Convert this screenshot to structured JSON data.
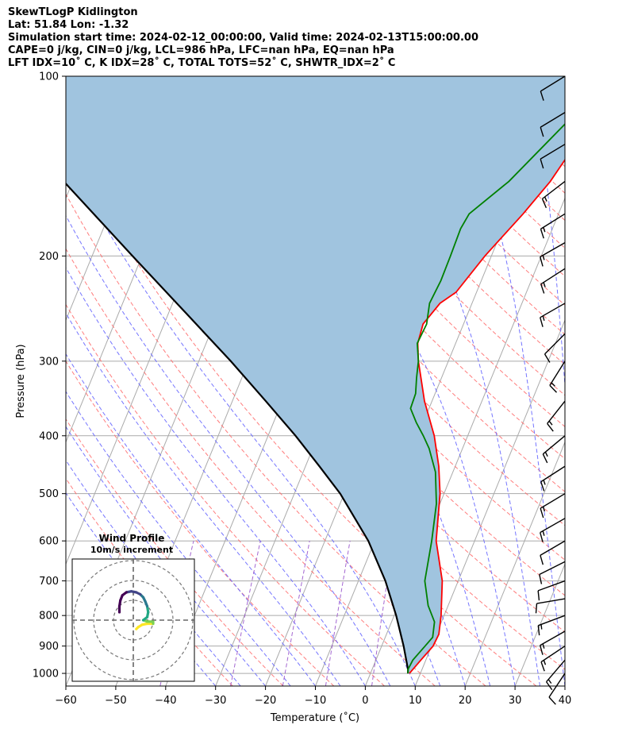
{
  "header": {
    "title": "SkewTLogP Kidlington",
    "location": "Lat: 51.84   Lon: -1.32",
    "times": "Simulation start time: 2024-02-12_00:00:00, Valid time: 2024-02-13T15:00:00.00",
    "params1": "CAPE=0 j/kg, CIN=0 j/kg, LCL=986 hPa, LFC=nan hPa, EQ=nan hPa",
    "params2": "LFT IDX=10˚ C, K IDX=28˚ C, TOTAL TOTS=52˚ C, SHWTR_IDX=2˚ C"
  },
  "chart_data": {
    "type": "skewt-logp",
    "xlabel": "Temperature (˚C)",
    "ylabel": "Pressure (hPa)",
    "xlim": [
      -60,
      40
    ],
    "ylim": [
      1050,
      100
    ],
    "y_scale": "log",
    "x_ticks": [
      "−60",
      "−50",
      "−40",
      "−30",
      "−20",
      "−10",
      "0",
      "10",
      "20",
      "30",
      "40"
    ],
    "y_ticks": [
      {
        "p": 100,
        "label": "100"
      },
      {
        "p": 200,
        "label": "200"
      },
      {
        "p": 300,
        "label": "300"
      },
      {
        "p": 400,
        "label": "400"
      },
      {
        "p": 500,
        "label": "500"
      },
      {
        "p": 600,
        "label": "600"
      },
      {
        "p": 700,
        "label": "700"
      },
      {
        "p": 800,
        "label": "800"
      },
      {
        "p": 900,
        "label": "900"
      },
      {
        "p": 1000,
        "label": "1000"
      }
    ],
    "grid": true,
    "colors": {
      "temperature": "#ff0000",
      "dewpoint": "#008000",
      "parcel": "#000000",
      "fill": "#a0c4df",
      "dry_adiabats": "#ff6666",
      "moist_adiabats": "#6666ff",
      "mixing_ratio": "#9955cc",
      "isotherms": "#aaaaaa"
    },
    "series": [
      {
        "id": "temperature",
        "points": [
          [
            1000,
            7.8
          ],
          [
            950,
            9
          ],
          [
            900,
            10.3
          ],
          [
            860,
            10.5
          ],
          [
            800,
            9.4
          ],
          [
            700,
            6.8
          ],
          [
            600,
            2.3
          ],
          [
            500,
            -0.8
          ],
          [
            450,
            -3.3
          ],
          [
            400,
            -6.7
          ],
          [
            350,
            -11.5
          ],
          [
            300,
            -16
          ],
          [
            280,
            -17.6
          ],
          [
            260,
            -18.1
          ],
          [
            240,
            -16.4
          ],
          [
            230,
            -14.1
          ],
          [
            200,
            -11.3
          ],
          [
            170,
            -7.1
          ],
          [
            150,
            -4.3
          ],
          [
            130,
            -2.3
          ],
          [
            115,
            -1.5
          ],
          [
            100,
            -1.3
          ]
        ]
      },
      {
        "id": "dewpoint",
        "points": [
          [
            1000,
            7.5
          ],
          [
            985,
            7.2
          ],
          [
            950,
            7.4
          ],
          [
            900,
            8.7
          ],
          [
            870,
            9.5
          ],
          [
            820,
            8.6
          ],
          [
            770,
            6
          ],
          [
            700,
            3.3
          ],
          [
            600,
            1.4
          ],
          [
            520,
            -0.7
          ],
          [
            460,
            -3.5
          ],
          [
            420,
            -6.7
          ],
          [
            400,
            -8.9
          ],
          [
            380,
            -11.4
          ],
          [
            360,
            -13.7
          ],
          [
            340,
            -13.9
          ],
          [
            320,
            -15
          ],
          [
            300,
            -16
          ],
          [
            280,
            -17.7
          ],
          [
            260,
            -17.4
          ],
          [
            240,
            -18.5
          ],
          [
            220,
            -18.1
          ],
          [
            200,
            -18.2
          ],
          [
            180,
            -18.4
          ],
          [
            170,
            -17.9
          ],
          [
            150,
            -12.6
          ],
          [
            120,
            -6
          ],
          [
            100,
            -1.6
          ]
        ]
      },
      {
        "id": "parcel",
        "points": [
          [
            1000,
            7.5
          ],
          [
            985,
            7.2
          ],
          [
            900,
            4.4
          ],
          [
            800,
            0.4
          ],
          [
            700,
            -4.6
          ],
          [
            600,
            -11.3
          ],
          [
            500,
            -20.8
          ],
          [
            450,
            -27.2
          ],
          [
            400,
            -34.5
          ],
          [
            350,
            -43.3
          ],
          [
            300,
            -53.6
          ],
          [
            250,
            -66.3
          ],
          [
            200,
            -81.9
          ],
          [
            150,
            -101.8
          ],
          [
            100,
            -130.5
          ]
        ]
      }
    ],
    "hodograph": {
      "title": "Wind Profile",
      "subtitle": "10m/s increment",
      "ring_step_ms": 10,
      "wind_uv": [
        [
          1.5,
          -4.5
        ],
        [
          2.5,
          -3.5
        ],
        [
          4.5,
          -2.3
        ],
        [
          7,
          -1.8
        ],
        [
          10,
          -1.8
        ],
        [
          10,
          -0.8
        ],
        [
          7,
          -0.7
        ],
        [
          5,
          0
        ],
        [
          7,
          1.5
        ],
        [
          7.5,
          4
        ],
        [
          7,
          7
        ],
        [
          6,
          9.5
        ],
        [
          5,
          11.5
        ],
        [
          3.5,
          13
        ],
        [
          1.5,
          14
        ],
        [
          -1,
          14.5
        ],
        [
          -3.5,
          14
        ],
        [
          -5.5,
          12.5
        ],
        [
          -6.5,
          10
        ],
        [
          -7,
          7
        ],
        [
          -7,
          4
        ]
      ],
      "color_scale": "viridis"
    },
    "wind_barbs": [
      {
        "p": 1000,
        "u": -3,
        "v": -4.5
      },
      {
        "p": 950,
        "u": -3,
        "v": -3.5
      },
      {
        "p": 900,
        "u": -3,
        "v": -2
      },
      {
        "p": 850,
        "u": -3,
        "v": -1.7
      },
      {
        "p": 800,
        "u": -4,
        "v": -1.5
      },
      {
        "p": 750,
        "u": -6,
        "v": -1
      },
      {
        "p": 700,
        "u": -5.5,
        "v": -2
      },
      {
        "p": 650,
        "u": -6,
        "v": -3
      },
      {
        "p": 600,
        "u": -6,
        "v": -3.5
      },
      {
        "p": 550,
        "u": -7,
        "v": -4
      },
      {
        "p": 500,
        "u": -7,
        "v": -4.2
      },
      {
        "p": 450,
        "u": -7,
        "v": -4.5
      },
      {
        "p": 400,
        "u": -6,
        "v": -5
      },
      {
        "p": 350,
        "u": -3,
        "v": -3.8
      },
      {
        "p": 300,
        "u": -2.5,
        "v": -4
      },
      {
        "p": 270,
        "u": -5,
        "v": -5
      },
      {
        "p": 240,
        "u": -7,
        "v": -4
      },
      {
        "p": 210,
        "u": -7,
        "v": -4.5
      },
      {
        "p": 190,
        "u": -7,
        "v": -4
      },
      {
        "p": 170,
        "u": -8,
        "v": -5
      },
      {
        "p": 150,
        "u": -6.5,
        "v": -5
      },
      {
        "p": 130,
        "u": -6,
        "v": -3.6
      },
      {
        "p": 115,
        "u": -5.8,
        "v": -3.5
      },
      {
        "p": 100,
        "u": -5.2,
        "v": -3.2
      }
    ]
  }
}
